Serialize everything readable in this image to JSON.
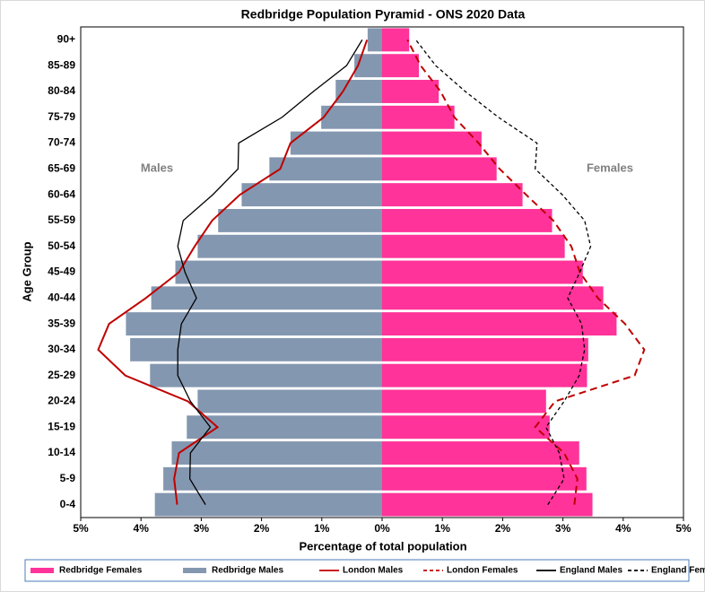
{
  "chart_data": {
    "type": "pyramid",
    "title": "Redbridge Population Pyramid - ONS 2020 Data",
    "x_label": "Percentage of total population",
    "y_label": "Age Group",
    "annotations": [
      "Males",
      "Females"
    ],
    "categories": [
      "0-4",
      "5-9",
      "10-14",
      "15-19",
      "20-24",
      "25-29",
      "30-34",
      "35-39",
      "40-44",
      "45-49",
      "50-54",
      "55-59",
      "60-64",
      "65-69",
      "70-74",
      "75-79",
      "80-84",
      "85-89",
      "90+"
    ],
    "xlim": [
      -5,
      5
    ],
    "xticks": [
      {
        "value": -5,
        "label": "5%"
      },
      {
        "value": -4,
        "label": "4%"
      },
      {
        "value": -3,
        "label": "3%"
      },
      {
        "value": -2,
        "label": "2%"
      },
      {
        "value": -1,
        "label": "1%"
      },
      {
        "value": 0,
        "label": "0%"
      },
      {
        "value": 1,
        "label": "1%"
      },
      {
        "value": 2,
        "label": "2%"
      },
      {
        "value": 3,
        "label": "3%"
      },
      {
        "value": 4,
        "label": "4%"
      },
      {
        "value": 5,
        "label": "5%"
      }
    ],
    "series": [
      {
        "name": "Redbridge Females",
        "style": "bar",
        "color": "#ff3399",
        "dash": false,
        "values": [
          3.49,
          3.39,
          3.27,
          2.78,
          2.72,
          3.4,
          3.42,
          3.89,
          3.67,
          3.33,
          3.03,
          2.82,
          2.33,
          1.9,
          1.65,
          1.2,
          0.94,
          0.61,
          0.45
        ]
      },
      {
        "name": "Redbridge Males",
        "style": "bar",
        "color": "#8497b0",
        "dash": false,
        "values": [
          -3.77,
          -3.63,
          -3.49,
          -3.24,
          -3.06,
          -3.85,
          -4.18,
          -4.25,
          -3.83,
          -3.43,
          -3.06,
          -2.72,
          -2.33,
          -1.87,
          -1.52,
          -1.01,
          -0.77,
          -0.46,
          -0.24
        ]
      },
      {
        "name": "London Males",
        "style": "line",
        "color": "#c00000",
        "dash": false,
        "values": [
          -3.4,
          -3.45,
          -3.37,
          -2.73,
          -3.22,
          -4.26,
          -4.71,
          -4.53,
          -3.92,
          -3.37,
          -3.11,
          -2.82,
          -2.36,
          -1.69,
          -1.52,
          -0.97,
          -0.65,
          -0.4,
          -0.25
        ]
      },
      {
        "name": "London Females",
        "style": "line",
        "color": "#c00000",
        "dash": true,
        "values": [
          3.19,
          3.24,
          3.02,
          2.54,
          2.87,
          4.19,
          4.35,
          4.03,
          3.58,
          3.28,
          3.14,
          2.84,
          2.39,
          1.95,
          1.6,
          1.2,
          0.97,
          0.64,
          0.42
        ]
      },
      {
        "name": "England Males",
        "style": "line",
        "color": "#000000",
        "dash": false,
        "values": [
          -2.93,
          -3.19,
          -3.18,
          -2.85,
          -3.18,
          -3.39,
          -3.39,
          -3.33,
          -3.08,
          -3.27,
          -3.39,
          -3.3,
          -2.81,
          -2.39,
          -2.38,
          -1.66,
          -1.14,
          -0.59,
          -0.33
        ]
      },
      {
        "name": "England Females",
        "style": "line",
        "color": "#000000",
        "dash": true,
        "values": [
          2.75,
          3.02,
          2.94,
          2.72,
          3.02,
          3.27,
          3.36,
          3.31,
          3.08,
          3.28,
          3.46,
          3.36,
          2.99,
          2.54,
          2.57,
          1.93,
          1.38,
          0.89,
          0.56
        ]
      }
    ]
  }
}
